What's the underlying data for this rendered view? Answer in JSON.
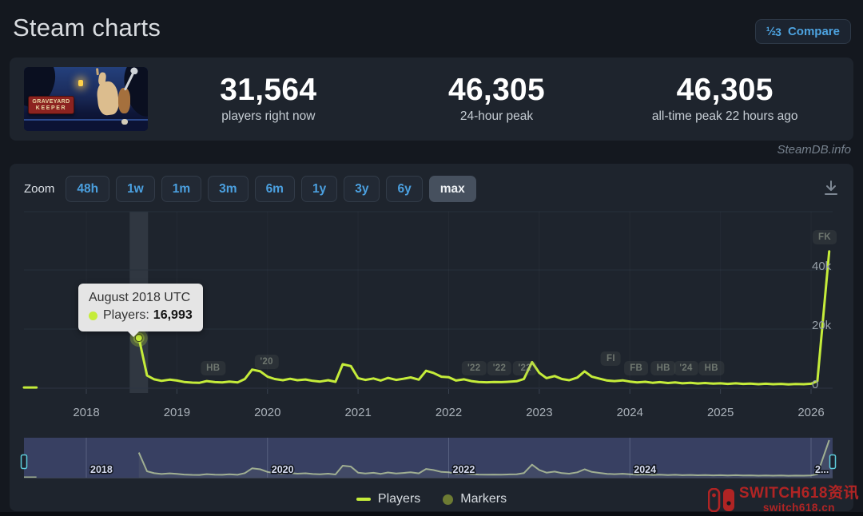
{
  "header": {
    "title": "Steam charts",
    "compare": {
      "label": "Compare",
      "icon_frac": "½",
      "icon_num": "3"
    }
  },
  "stats": {
    "game": {
      "title": "GRAVEYARD",
      "subtitle": "KEEPER"
    },
    "blocks": [
      {
        "value": "31,564",
        "label": "players right now"
      },
      {
        "value": "46,305",
        "label": "24-hour peak"
      },
      {
        "value": "46,305",
        "label": "all-time peak 22 hours ago"
      }
    ]
  },
  "credit": "SteamDB.info",
  "toolbar": {
    "zoom_label": "Zoom",
    "buttons": [
      {
        "label": "48h",
        "active": false
      },
      {
        "label": "1w",
        "active": false
      },
      {
        "label": "1m",
        "active": false
      },
      {
        "label": "3m",
        "active": false
      },
      {
        "label": "6m",
        "active": false
      },
      {
        "label": "1y",
        "active": false
      },
      {
        "label": "3y",
        "active": false
      },
      {
        "label": "6y",
        "active": false
      },
      {
        "label": "max",
        "active": true
      }
    ]
  },
  "chart_data": {
    "type": "line",
    "title": "",
    "xlabel": "",
    "ylabel": "",
    "x_range": [
      2017.3,
      2026.25
    ],
    "y_range": [
      0,
      48000
    ],
    "grid": true,
    "legend_position": "bottom-center",
    "x_ticks": [
      2018,
      2019,
      2020,
      2021,
      2022,
      2023,
      2024,
      2025,
      2026
    ],
    "y_ticks": [
      {
        "v": 0,
        "label": "0"
      },
      {
        "v": 20000,
        "label": "20k"
      },
      {
        "v": 40000,
        "label": "40k"
      }
    ],
    "colors": {
      "line": "#c5ec3a",
      "marker_dot": "#6d7b33",
      "nav_line": "#cfe183",
      "nav_mask": "rgba(91,101,170,0.40)",
      "tooltip_bg": "#ebebeb"
    },
    "legend": [
      {
        "label": "Players",
        "swatch": "line"
      },
      {
        "label": "Markers",
        "swatch": "dot"
      }
    ],
    "pre_release": [
      [
        2017.3,
        250
      ],
      [
        2017.45,
        250
      ]
    ],
    "series": [
      {
        "name": "Players",
        "points": [
          [
            2018.58,
            16993
          ],
          [
            2018.67,
            4300
          ],
          [
            2018.75,
            3000
          ],
          [
            2018.83,
            2500
          ],
          [
            2018.92,
            2900
          ],
          [
            2019.0,
            2600
          ],
          [
            2019.08,
            2100
          ],
          [
            2019.17,
            1900
          ],
          [
            2019.25,
            1850
          ],
          [
            2019.33,
            2400
          ],
          [
            2019.42,
            2050
          ],
          [
            2019.5,
            1950
          ],
          [
            2019.58,
            2250
          ],
          [
            2019.67,
            1950
          ],
          [
            2019.75,
            3100
          ],
          [
            2019.83,
            6300
          ],
          [
            2019.92,
            5700
          ],
          [
            2020.0,
            3900
          ],
          [
            2020.08,
            3100
          ],
          [
            2020.17,
            2700
          ],
          [
            2020.25,
            3200
          ],
          [
            2020.33,
            2700
          ],
          [
            2020.42,
            2950
          ],
          [
            2020.5,
            2500
          ],
          [
            2020.58,
            2250
          ],
          [
            2020.67,
            2700
          ],
          [
            2020.75,
            2150
          ],
          [
            2020.83,
            8100
          ],
          [
            2020.92,
            7500
          ],
          [
            2021.0,
            3400
          ],
          [
            2021.08,
            2800
          ],
          [
            2021.17,
            3300
          ],
          [
            2021.25,
            2600
          ],
          [
            2021.33,
            3500
          ],
          [
            2021.42,
            2800
          ],
          [
            2021.5,
            3200
          ],
          [
            2021.58,
            3650
          ],
          [
            2021.67,
            2900
          ],
          [
            2021.75,
            5900
          ],
          [
            2021.83,
            5200
          ],
          [
            2021.92,
            3900
          ],
          [
            2022.0,
            3700
          ],
          [
            2022.08,
            2600
          ],
          [
            2022.17,
            3000
          ],
          [
            2022.25,
            2400
          ],
          [
            2022.33,
            2100
          ],
          [
            2022.42,
            2000
          ],
          [
            2022.5,
            2100
          ],
          [
            2022.58,
            2050
          ],
          [
            2022.67,
            2200
          ],
          [
            2022.75,
            2350
          ],
          [
            2022.83,
            3100
          ],
          [
            2022.92,
            8800
          ],
          [
            2023.0,
            5200
          ],
          [
            2023.08,
            3400
          ],
          [
            2023.17,
            4100
          ],
          [
            2023.25,
            3100
          ],
          [
            2023.33,
            2700
          ],
          [
            2023.42,
            3600
          ],
          [
            2023.5,
            5700
          ],
          [
            2023.58,
            3900
          ],
          [
            2023.67,
            3200
          ],
          [
            2023.75,
            2600
          ],
          [
            2023.83,
            2400
          ],
          [
            2023.92,
            2650
          ],
          [
            2024.0,
            2250
          ],
          [
            2024.08,
            1950
          ],
          [
            2024.17,
            2150
          ],
          [
            2024.25,
            1850
          ],
          [
            2024.33,
            2050
          ],
          [
            2024.42,
            1750
          ],
          [
            2024.5,
            1950
          ],
          [
            2024.58,
            1650
          ],
          [
            2024.67,
            1850
          ],
          [
            2024.75,
            1600
          ],
          [
            2024.83,
            1750
          ],
          [
            2024.92,
            1550
          ],
          [
            2025.0,
            1650
          ],
          [
            2025.08,
            1450
          ],
          [
            2025.17,
            1650
          ],
          [
            2025.25,
            1450
          ],
          [
            2025.33,
            1550
          ],
          [
            2025.42,
            1350
          ],
          [
            2025.5,
            1500
          ],
          [
            2025.58,
            1350
          ],
          [
            2025.67,
            1450
          ],
          [
            2025.75,
            1300
          ],
          [
            2025.83,
            1400
          ],
          [
            2025.92,
            1350
          ],
          [
            2026.0,
            1500
          ],
          [
            2026.07,
            2400
          ],
          [
            2026.2,
            46305
          ]
        ]
      }
    ],
    "tooltip": {
      "title": "August 2018 UTC",
      "series": "Players:",
      "value": "16,993",
      "x": 2018.58,
      "y": 16993
    },
    "event_markers": [
      {
        "label": "HB",
        "x": 2019.4,
        "y": 461
      },
      {
        "label": "'20",
        "x": 2019.99,
        "y": 453
      },
      {
        "label": "'22",
        "x": 2022.28,
        "y": 461
      },
      {
        "label": "'22",
        "x": 2022.56,
        "y": 461
      },
      {
        "label": "'22",
        "x": 2022.84,
        "y": 461
      },
      {
        "label": "FI",
        "x": 2023.79,
        "y": 449
      },
      {
        "label": "FB",
        "x": 2024.07,
        "y": 461
      },
      {
        "label": "HB",
        "x": 2024.37,
        "y": 461
      },
      {
        "label": "'24",
        "x": 2024.62,
        "y": 461
      },
      {
        "label": "HB",
        "x": 2024.9,
        "y": 461
      },
      {
        "label": "FK",
        "x": 2026.15,
        "y": 297
      }
    ],
    "navigator": {
      "labels": [
        {
          "x": 2018,
          "label": "2018"
        },
        {
          "x": 2020,
          "label": "2020"
        },
        {
          "x": 2022,
          "label": "2022"
        },
        {
          "x": 2024,
          "label": "2024"
        },
        {
          "x": 2026,
          "label": "2..."
        }
      ]
    }
  },
  "watermark": {
    "line1": "SWITCH618资讯",
    "line2": "switch618.cn"
  }
}
